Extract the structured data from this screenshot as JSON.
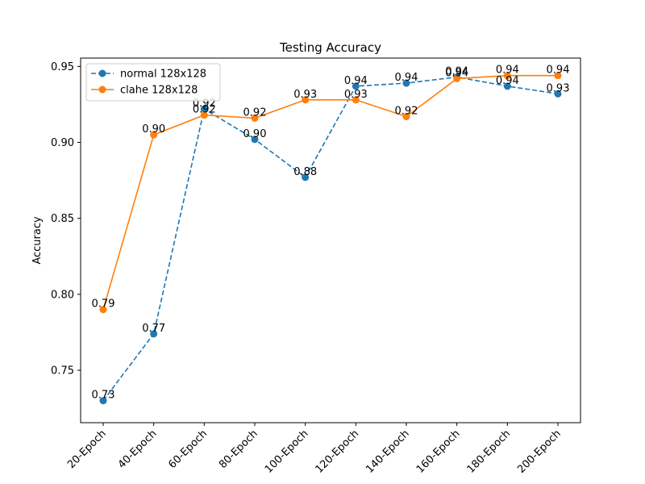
{
  "chart_data": {
    "type": "line",
    "title": "Testing Accuracy",
    "xlabel": "",
    "ylabel": "Accuracy",
    "categories": [
      "20-Epoch",
      "40-Epoch",
      "60-Epoch",
      "80-Epoch",
      "100-Epoch",
      "120-Epoch",
      "140-Epoch",
      "160-Epoch",
      "180-Epoch",
      "200-Epoch"
    ],
    "ylim": [
      0.7155,
      0.9555
    ],
    "yticks": [
      "0.75",
      "0.80",
      "0.85",
      "0.90",
      "0.95"
    ],
    "grid": false,
    "legend_position": "top-left",
    "x_tick_rotation_deg": 45,
    "series": [
      {
        "name": "normal 128x128",
        "color": "#1f77b4",
        "line_style": "dashed",
        "marker": "circle",
        "values": [
          0.73,
          0.774,
          0.922,
          0.902,
          0.877,
          0.937,
          0.939,
          0.943,
          0.937,
          0.932
        ],
        "labels": [
          "0.73",
          "0.77",
          "0.92",
          "0.90",
          "0.88",
          "0.94",
          "0.94",
          "0.94",
          "0.94",
          "0.93"
        ]
      },
      {
        "name": "clahe 128x128",
        "color": "#ff7f0e",
        "line_style": "solid",
        "marker": "circle",
        "values": [
          0.79,
          0.905,
          0.918,
          0.916,
          0.928,
          0.928,
          0.917,
          0.942,
          0.944,
          0.944
        ],
        "labels": [
          "0.79",
          "0.90",
          "0.92",
          "0.92",
          "0.93",
          "0.93",
          "0.92",
          "0.94",
          "0.94",
          "0.94"
        ]
      }
    ]
  }
}
